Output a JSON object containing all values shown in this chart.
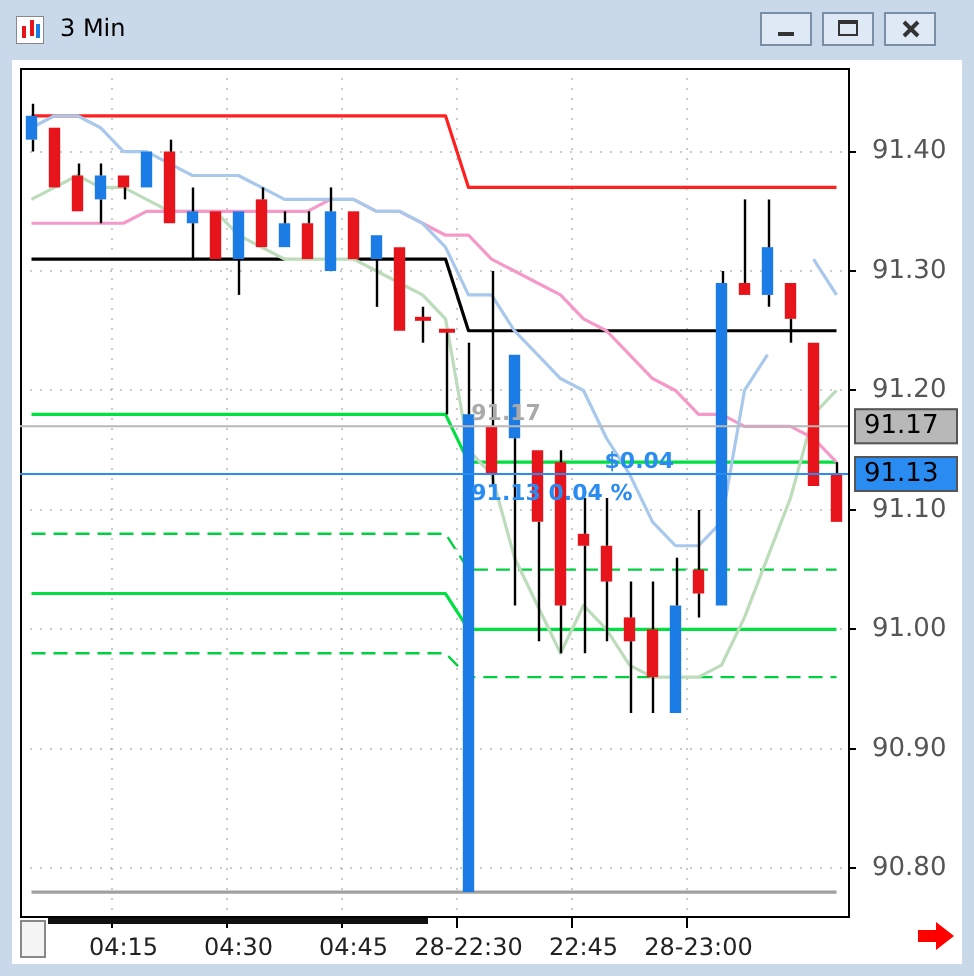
{
  "chart_data": {
    "type": "candlestick",
    "title": "3 Min",
    "categories": [
      null,
      null,
      null,
      null,
      "04:15",
      null,
      null,
      null,
      null,
      "04:30",
      null,
      null,
      null,
      null,
      "04:45",
      null,
      null,
      null,
      null,
      "28-22:30",
      null,
      null,
      null,
      null,
      "22:45",
      null,
      null,
      null,
      null,
      "28-23:00",
      null,
      null,
      null,
      null,
      null,
      null
    ],
    "ohlc": [
      [
        91.41,
        91.44,
        91.4,
        91.43
      ],
      [
        91.42,
        91.42,
        91.37,
        91.37
      ],
      [
        91.38,
        91.39,
        91.35,
        91.35
      ],
      [
        91.36,
        91.39,
        91.34,
        91.38
      ],
      [
        91.38,
        91.38,
        91.36,
        91.37
      ],
      [
        91.37,
        91.4,
        91.37,
        91.4
      ],
      [
        91.4,
        91.41,
        91.34,
        91.34
      ],
      [
        91.34,
        91.37,
        91.31,
        91.35
      ],
      [
        91.35,
        91.35,
        91.31,
        91.31
      ],
      [
        91.31,
        91.35,
        91.28,
        91.35
      ],
      [
        91.36,
        91.37,
        91.32,
        91.32
      ],
      [
        91.32,
        91.35,
        91.32,
        91.34
      ],
      [
        91.34,
        91.35,
        91.31,
        91.31
      ],
      [
        91.3,
        91.37,
        91.3,
        91.35
      ],
      [
        91.35,
        91.35,
        91.31,
        91.31
      ],
      [
        91.31,
        91.33,
        91.27,
        91.33
      ],
      [
        91.32,
        91.32,
        91.25,
        91.25
      ],
      [
        91.26,
        91.27,
        91.24,
        91.26
      ],
      [
        91.25,
        91.25,
        91.18,
        91.25
      ],
      [
        90.78,
        91.24,
        90.78,
        91.18
      ],
      [
        91.17,
        91.3,
        91.12,
        91.13
      ],
      [
        91.16,
        91.23,
        91.02,
        91.23
      ],
      [
        91.15,
        91.15,
        90.99,
        91.09
      ],
      [
        91.14,
        91.15,
        90.98,
        91.02
      ],
      [
        91.08,
        91.11,
        90.98,
        91.07
      ],
      [
        91.07,
        91.11,
        90.99,
        91.04
      ],
      [
        91.01,
        91.04,
        90.93,
        90.99
      ],
      [
        91.0,
        91.04,
        90.93,
        90.96
      ],
      [
        90.93,
        91.06,
        90.93,
        91.02
      ],
      [
        91.05,
        91.1,
        91.01,
        91.03
      ],
      [
        91.02,
        91.3,
        91.02,
        91.29
      ],
      [
        91.29,
        91.36,
        91.28,
        91.28
      ],
      [
        91.28,
        91.36,
        91.27,
        91.32
      ],
      [
        91.29,
        91.29,
        91.24,
        91.26
      ],
      [
        91.24,
        91.24,
        91.12,
        91.12
      ],
      [
        91.13,
        91.14,
        91.09,
        91.09
      ]
    ],
    "colors": [
      "#1c7ce6",
      "#e8141c",
      "#e8141c",
      "#1c7ce6",
      "#e8141c",
      "#1c7ce6",
      "#e8141c",
      "#1c7ce6",
      "#e8141c",
      "#1c7ce6",
      "#e8141c",
      "#1c7ce6",
      "#e8141c",
      "#1c7ce6",
      "#e8141c",
      "#1c7ce6",
      "#e8141c",
      "#e8141c",
      "#e8141c",
      "#1c7ce6",
      "#e8141c",
      "#1c7ce6",
      "#e8141c",
      "#e8141c",
      "#e8141c",
      "#e8141c",
      "#e8141c",
      "#e8141c",
      "#1c7ce6",
      "#e8141c",
      "#1c7ce6",
      "#e8141c",
      "#1c7ce6",
      "#e8141c",
      "#e8141c",
      "#e8141c"
    ],
    "series": [
      {
        "type": "line",
        "color": "#a8c8ec",
        "values": [
          91.42,
          91.43,
          91.43,
          91.42,
          91.4,
          91.4,
          91.39,
          91.38,
          91.38,
          91.38,
          91.37,
          91.36,
          91.36,
          91.36,
          91.36,
          91.35,
          91.35,
          91.34,
          91.32,
          91.28,
          91.28,
          91.25,
          91.23,
          91.21,
          91.2,
          91.16,
          91.13,
          91.09,
          91.07,
          91.07,
          91.09,
          91.2,
          91.23,
          null,
          91.31,
          91.28
        ]
      },
      {
        "type": "line",
        "color": "#f59ac8",
        "values": [
          91.34,
          91.34,
          91.34,
          91.34,
          91.34,
          91.35,
          91.35,
          91.35,
          91.35,
          91.35,
          91.35,
          91.35,
          91.35,
          91.36,
          91.36,
          91.35,
          91.35,
          91.34,
          91.33,
          91.33,
          91.31,
          91.3,
          91.29,
          91.28,
          91.26,
          91.25,
          91.23,
          91.21,
          91.2,
          91.18,
          91.18,
          91.17,
          91.17,
          91.17,
          91.16,
          91.14
        ]
      },
      {
        "type": "line",
        "color": "#bcdcbc",
        "values": [
          91.36,
          91.37,
          91.38,
          91.37,
          91.37,
          91.36,
          91.35,
          91.35,
          91.35,
          91.33,
          91.32,
          91.31,
          91.31,
          91.31,
          91.31,
          91.3,
          91.29,
          91.28,
          91.26,
          91.15,
          91.13,
          91.06,
          91.02,
          90.98,
          91.02,
          91.0,
          90.97,
          90.96,
          90.96,
          90.96,
          90.97,
          91.01,
          91.06,
          91.11,
          91.18,
          91.2
        ]
      },
      {
        "type": "line",
        "color": "#ff2020",
        "values": [
          91.43,
          91.43,
          91.43,
          91.43,
          91.43,
          91.43,
          91.43,
          91.43,
          91.43,
          91.43,
          91.43,
          91.43,
          91.43,
          91.43,
          91.43,
          91.43,
          91.43,
          91.43,
          91.43,
          91.37,
          91.37,
          91.37,
          91.37,
          91.37,
          91.37,
          91.37,
          91.37,
          91.37,
          91.37,
          91.37,
          91.37,
          91.37,
          91.37,
          91.37,
          91.37,
          91.37
        ]
      },
      {
        "type": "line",
        "color": "#000000",
        "values": [
          91.31,
          91.31,
          91.31,
          91.31,
          91.31,
          91.31,
          91.31,
          91.31,
          91.31,
          91.31,
          91.31,
          91.31,
          null,
          null,
          91.31,
          91.31,
          91.31,
          91.31,
          91.31,
          91.25,
          91.25,
          91.25,
          91.25,
          91.25,
          91.25,
          91.25,
          91.25,
          91.25,
          91.25,
          91.25,
          91.25,
          91.25,
          91.25,
          91.25,
          91.25,
          91.25
        ]
      },
      {
        "type": "line",
        "color": "#00e040",
        "values": [
          91.18,
          91.18,
          91.18,
          91.18,
          91.18,
          91.18,
          91.18,
          91.18,
          91.18,
          91.18,
          91.18,
          91.18,
          91.18,
          91.18,
          91.18,
          91.18,
          91.18,
          91.18,
          91.18,
          91.14,
          91.14,
          91.14,
          91.14,
          91.14,
          91.14,
          91.14,
          91.14,
          91.14,
          91.14,
          91.14,
          91.14,
          91.14,
          91.14,
          91.14,
          91.14,
          91.14
        ]
      },
      {
        "type": "line",
        "color": "#00e040",
        "values": [
          91.03,
          91.03,
          91.03,
          91.03,
          91.03,
          91.03,
          91.03,
          91.03,
          91.03,
          91.03,
          91.03,
          91.03,
          91.03,
          91.03,
          91.03,
          91.03,
          91.03,
          91.03,
          91.03,
          91.0,
          91.0,
          91.0,
          91.0,
          91.0,
          91.0,
          91.0,
          91.0,
          91.0,
          91.0,
          91.0,
          91.0,
          91.0,
          91.0,
          91.0,
          91.0,
          91.0
        ]
      },
      {
        "type": "line",
        "color": "#00d040",
        "line_style": "dashed",
        "values": [
          91.08,
          91.08,
          91.08,
          91.08,
          91.08,
          91.08,
          91.08,
          91.08,
          91.08,
          91.08,
          91.08,
          91.08,
          91.08,
          91.08,
          91.08,
          91.08,
          91.08,
          91.08,
          91.08,
          91.05,
          91.05,
          91.05,
          91.05,
          91.05,
          91.05,
          91.05,
          91.05,
          91.05,
          91.05,
          91.05,
          91.05,
          91.05,
          91.05,
          91.05,
          91.05,
          91.05
        ]
      },
      {
        "type": "line",
        "color": "#00d040",
        "line_style": "dashed",
        "values": [
          90.98,
          90.98,
          90.98,
          90.98,
          90.98,
          90.98,
          90.98,
          90.98,
          90.98,
          90.98,
          90.98,
          90.98,
          90.98,
          90.98,
          90.98,
          90.98,
          90.98,
          90.98,
          90.98,
          90.96,
          90.96,
          90.96,
          90.96,
          90.96,
          90.96,
          90.96,
          90.96,
          90.96,
          null,
          90.96,
          90.96,
          90.96,
          90.96,
          90.96,
          90.96,
          90.96
        ]
      },
      {
        "type": "line",
        "color": "#a0a0a0",
        "values": [
          90.78,
          90.78,
          90.78,
          90.78,
          90.78,
          90.78,
          90.78,
          90.78,
          90.78,
          90.78,
          90.78,
          90.78,
          90.78,
          90.78,
          90.78,
          90.78,
          90.78,
          90.78,
          90.78,
          90.78,
          90.78,
          90.78,
          90.78,
          90.78,
          90.78,
          90.78,
          90.78,
          90.78,
          90.78,
          90.78,
          90.78,
          90.78,
          90.78,
          90.78,
          90.78,
          90.78
        ]
      }
    ],
    "ylim": [
      90.76,
      91.47
    ],
    "yticks": [
      {
        "value": 90.8,
        "label": "90.80"
      },
      {
        "value": 90.9,
        "label": "90.90"
      },
      {
        "value": 91.0,
        "label": "91.00"
      },
      {
        "value": 91.1,
        "label": "91.10"
      },
      {
        "value": 91.2,
        "label": "91.20"
      },
      {
        "value": 91.3,
        "label": "91.30"
      },
      {
        "value": 91.4,
        "label": "91.40"
      }
    ],
    "ref_lines": [
      {
        "axis": "y",
        "value": 91.17,
        "label": "91.17",
        "color": "#b8b8b8"
      },
      {
        "axis": "y",
        "value": 91.13,
        "label": "91.13",
        "color": "#2a8cf0"
      }
    ],
    "annotations": [
      {
        "text": "91.17",
        "y": 91.17
      },
      {
        "text": "$0.04",
        "y": 91.13
      },
      {
        "text": "91.13 0.04 %",
        "y": 91.13
      }
    ],
    "grid": true
  }
}
